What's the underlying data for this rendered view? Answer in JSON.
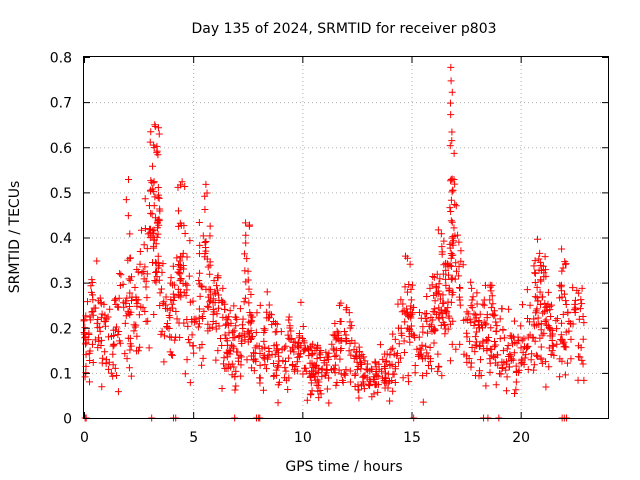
{
  "chart_data": {
    "type": "scatter",
    "title": "Day 135 of 2024, SRMTID for receiver p803",
    "xlabel": "GPS time / hours",
    "ylabel": "SRMTID / TECUs",
    "xlim": [
      0,
      24
    ],
    "ylim": [
      0,
      0.8
    ],
    "xticks": [
      0,
      5,
      10,
      15,
      20
    ],
    "yticks": [
      0,
      0.1,
      0.2,
      0.3,
      0.4,
      0.5,
      0.6,
      0.7,
      0.8
    ],
    "xtick_labels": [
      "0",
      "5",
      "10",
      "15",
      "20"
    ],
    "ytick_labels": [
      "0",
      "0.1",
      "0.2",
      "0.3",
      "0.4",
      "0.5",
      "0.6",
      "0.7",
      "0.8"
    ],
    "grid": true,
    "marker": "+",
    "color": "#ff0000",
    "series": [
      {
        "name": "SRMTID",
        "profile": [
          [
            0.0,
            0.17
          ],
          [
            0.5,
            0.22
          ],
          [
            1.0,
            0.17
          ],
          [
            1.5,
            0.19
          ],
          [
            2.0,
            0.22
          ],
          [
            2.5,
            0.22
          ],
          [
            3.0,
            0.38
          ],
          [
            3.3,
            0.45
          ],
          [
            3.6,
            0.28
          ],
          [
            4.0,
            0.22
          ],
          [
            4.5,
            0.3
          ],
          [
            5.0,
            0.22
          ],
          [
            5.5,
            0.27
          ],
          [
            6.0,
            0.25
          ],
          [
            6.5,
            0.16
          ],
          [
            7.0,
            0.15
          ],
          [
            7.5,
            0.2
          ],
          [
            8.0,
            0.14
          ],
          [
            8.5,
            0.18
          ],
          [
            9.0,
            0.13
          ],
          [
            9.5,
            0.15
          ],
          [
            10.0,
            0.14
          ],
          [
            10.5,
            0.12
          ],
          [
            11.0,
            0.11
          ],
          [
            11.5,
            0.14
          ],
          [
            12.0,
            0.17
          ],
          [
            12.5,
            0.12
          ],
          [
            13.0,
            0.09
          ],
          [
            13.5,
            0.1
          ],
          [
            14.0,
            0.11
          ],
          [
            14.5,
            0.17
          ],
          [
            15.0,
            0.2
          ],
          [
            15.5,
            0.15
          ],
          [
            16.0,
            0.22
          ],
          [
            16.5,
            0.25
          ],
          [
            17.0,
            0.35
          ],
          [
            17.5,
            0.22
          ],
          [
            18.0,
            0.18
          ],
          [
            18.5,
            0.22
          ],
          [
            19.0,
            0.16
          ],
          [
            19.5,
            0.15
          ],
          [
            20.0,
            0.14
          ],
          [
            20.5,
            0.19
          ],
          [
            21.0,
            0.25
          ],
          [
            21.5,
            0.17
          ],
          [
            22.0,
            0.2
          ],
          [
            22.5,
            0.2
          ],
          [
            22.9,
            0.18
          ]
        ],
        "bursts": [
          {
            "x_range": [
              3.0,
              3.45
            ],
            "y_range": [
              0.3,
              0.65
            ],
            "count": 45
          },
          {
            "x_range": [
              1.9,
              2.2
            ],
            "y_range": [
              0.25,
              0.55
            ],
            "count": 8
          },
          {
            "x_range": [
              4.3,
              4.65
            ],
            "y_range": [
              0.3,
              0.55
            ],
            "count": 22
          },
          {
            "x_range": [
              5.4,
              5.8
            ],
            "y_range": [
              0.3,
              0.54
            ],
            "count": 14
          },
          {
            "x_range": [
              7.35,
              7.6
            ],
            "y_range": [
              0.25,
              0.5
            ],
            "count": 12
          },
          {
            "x_range": [
              14.7,
              15.1
            ],
            "y_range": [
              0.22,
              0.36
            ],
            "count": 12
          },
          {
            "x_range": [
              16.1,
              16.5
            ],
            "y_range": [
              0.22,
              0.42
            ],
            "count": 14
          },
          {
            "x_range": [
              16.75,
              17.0
            ],
            "y_range": [
              0.42,
              0.78
            ],
            "count": 22
          },
          {
            "x_range": [
              20.6,
              21.2
            ],
            "y_range": [
              0.24,
              0.4
            ],
            "count": 16
          },
          {
            "x_range": [
              21.8,
              22.1
            ],
            "y_range": [
              0.25,
              0.39
            ],
            "count": 10
          }
        ],
        "zero_points": [
          0.05,
          0.1,
          3.1,
          4.1,
          4.2,
          6.9,
          7.9,
          8.0,
          8.05,
          15.1,
          18.3,
          18.5,
          19.0,
          21.9,
          22.0,
          22.1
        ]
      }
    ]
  }
}
